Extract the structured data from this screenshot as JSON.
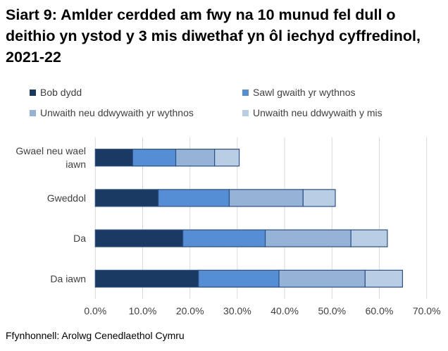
{
  "title": "Siart 9: Amlder cerdded am fwy na 10 munud fel dull o deithio yn ystod y 3 mis diwethaf yn ôl iechyd cyffredinol, 2021-22",
  "source": "Ffynhonnell: Arolwg Cenedlaethol Cymru",
  "chart_data": {
    "type": "bar",
    "orientation": "horizontal",
    "stacked": true,
    "title": "Siart 9: Amlder cerdded am fwy na 10 munud fel dull o deithio yn ystod y 3 mis diwethaf yn ôl iechyd cyffredinol, 2021-22",
    "categories": [
      "Gwael neu wael iawn",
      "Gweddol",
      "Da",
      "Da iawn"
    ],
    "series": [
      {
        "name": "Bob dydd",
        "color": "#1b3a63",
        "values": [
          7.9,
          13.3,
          18.5,
          21.8
        ]
      },
      {
        "name": "Sawl gwaith yr wythnos",
        "color": "#558ed5",
        "values": [
          9.1,
          15.0,
          17.4,
          17.0
        ]
      },
      {
        "name": "Unwaith neu ddwywaith yr wythnos",
        "color": "#95b3d7",
        "values": [
          8.2,
          15.6,
          18.1,
          18.2
        ]
      },
      {
        "name": "Unwaith neu ddwywaith y mis",
        "color": "#b9cde5",
        "values": [
          5.2,
          6.8,
          7.7,
          7.9
        ]
      }
    ],
    "xlim": [
      0,
      70
    ],
    "xticks": [
      "0.0%",
      "10.0%",
      "20.0%",
      "30.0%",
      "40.0%",
      "50.0%",
      "60.0%",
      "70.0%"
    ],
    "grid": true,
    "legend": "top"
  }
}
